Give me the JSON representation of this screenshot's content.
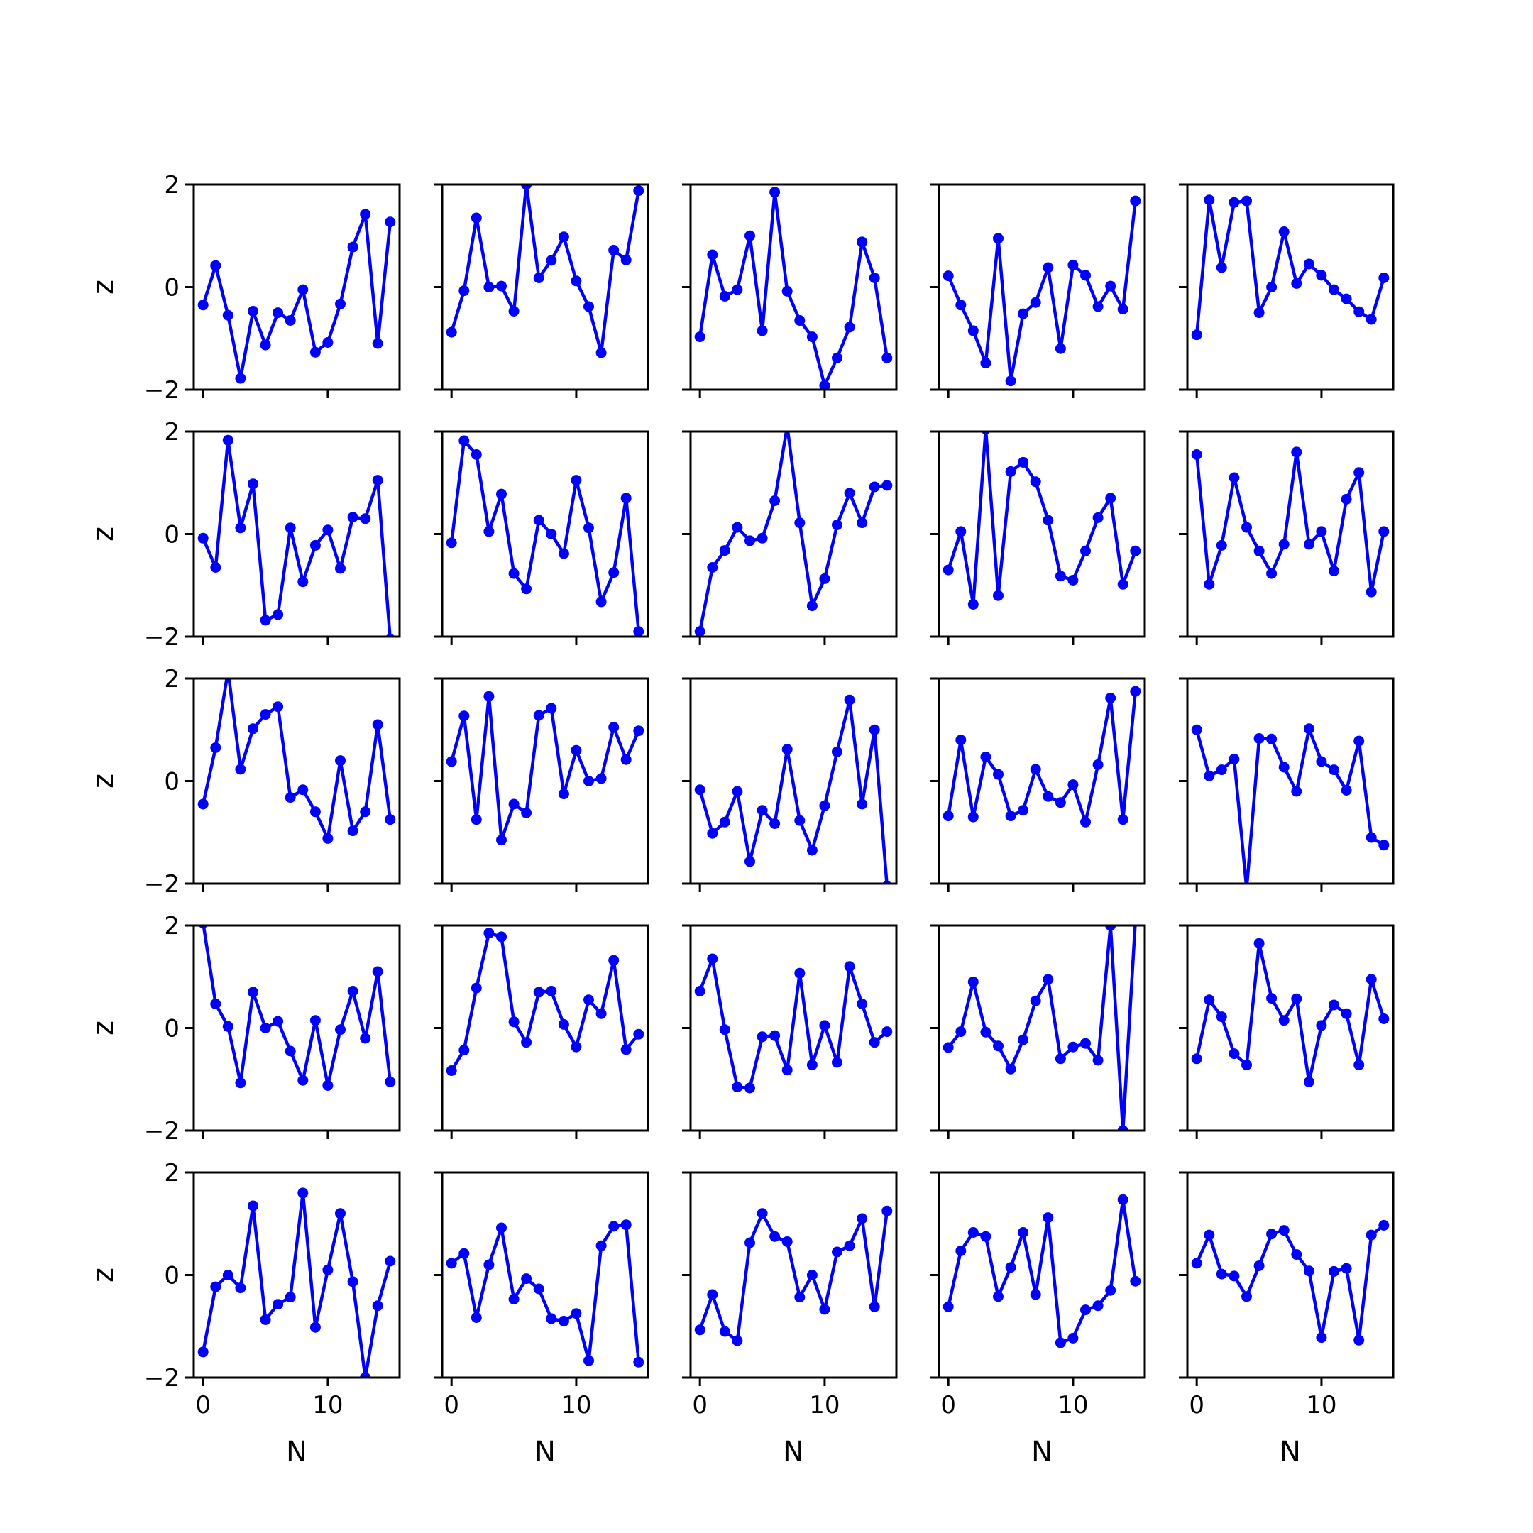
{
  "chart_data": {
    "type": "line",
    "grid_rows": 5,
    "grid_cols": 5,
    "sharex": true,
    "sharey": true,
    "xlabel": "N",
    "ylabel": "z",
    "xlim": [
      -0.75,
      15.75
    ],
    "ylim": [
      -2,
      2
    ],
    "xticks": [
      0,
      10
    ],
    "yticks": [
      -2,
      0,
      2
    ],
    "color": "#0000ff",
    "marker": "circle",
    "grid": false,
    "x": [
      0,
      1,
      2,
      3,
      4,
      5,
      6,
      7,
      8,
      9,
      10,
      11,
      12,
      13,
      14,
      15
    ],
    "panels": [
      {
        "row": 0,
        "col": 0,
        "values": [
          -0.35,
          0.42,
          -0.55,
          -1.78,
          -0.47,
          -1.13,
          -0.5,
          -0.65,
          -0.05,
          -1.27,
          -1.08,
          -0.33,
          0.78,
          1.42,
          -1.1,
          1.27
        ]
      },
      {
        "row": 0,
        "col": 1,
        "values": [
          -0.88,
          -0.07,
          1.35,
          0.0,
          0.02,
          -0.47,
          2.0,
          0.18,
          0.52,
          0.98,
          0.12,
          -0.38,
          -1.28,
          0.72,
          0.53,
          1.88
        ]
      },
      {
        "row": 0,
        "col": 2,
        "values": [
          -0.97,
          0.63,
          -0.18,
          -0.05,
          1.0,
          -0.85,
          1.85,
          -0.08,
          -0.65,
          -0.97,
          -1.92,
          -1.38,
          -0.78,
          0.88,
          0.18,
          -1.38
        ]
      },
      {
        "row": 0,
        "col": 3,
        "values": [
          0.22,
          -0.35,
          -0.85,
          -1.48,
          0.95,
          -1.83,
          -0.52,
          -0.3,
          0.38,
          -1.2,
          0.43,
          0.23,
          -0.38,
          0.02,
          -0.43,
          1.68
        ]
      },
      {
        "row": 0,
        "col": 4,
        "values": [
          -0.93,
          1.7,
          0.38,
          1.65,
          1.68,
          -0.5,
          0.0,
          1.08,
          0.07,
          0.45,
          0.23,
          -0.05,
          -0.23,
          -0.48,
          -0.63,
          0.18
        ]
      },
      {
        "row": 1,
        "col": 0,
        "values": [
          -0.08,
          -0.65,
          1.83,
          0.12,
          0.98,
          -1.68,
          -1.57,
          0.12,
          -0.93,
          -0.22,
          0.08,
          -0.67,
          0.33,
          0.3,
          1.05,
          -2.05
        ]
      },
      {
        "row": 1,
        "col": 1,
        "values": [
          -0.17,
          1.82,
          1.55,
          0.05,
          0.78,
          -0.77,
          -1.07,
          0.27,
          0.0,
          -0.38,
          1.05,
          0.12,
          -1.32,
          -0.75,
          0.7,
          -1.9
        ]
      },
      {
        "row": 1,
        "col": 2,
        "values": [
          -1.9,
          -0.65,
          -0.32,
          0.13,
          -0.13,
          -0.08,
          0.65,
          2.1,
          0.22,
          -1.4,
          -0.87,
          0.18,
          0.8,
          0.22,
          0.92,
          0.95
        ]
      },
      {
        "row": 1,
        "col": 3,
        "values": [
          -0.7,
          0.05,
          -1.37,
          2.05,
          -1.2,
          1.22,
          1.4,
          1.02,
          0.27,
          -0.82,
          -0.9,
          -0.33,
          0.32,
          0.7,
          -0.98,
          -0.33
        ]
      },
      {
        "row": 1,
        "col": 4,
        "values": [
          1.55,
          -0.98,
          -0.22,
          1.1,
          0.13,
          -0.33,
          -0.77,
          -0.2,
          1.6,
          -0.2,
          0.05,
          -0.72,
          0.68,
          1.2,
          -1.13,
          0.05
        ]
      },
      {
        "row": 2,
        "col": 0,
        "values": [
          -0.45,
          0.65,
          2.15,
          0.23,
          1.02,
          1.3,
          1.45,
          -0.32,
          -0.17,
          -0.6,
          -1.12,
          0.4,
          -0.97,
          -0.6,
          1.1,
          -0.75
        ]
      },
      {
        "row": 2,
        "col": 1,
        "values": [
          0.38,
          1.27,
          -0.75,
          1.65,
          -1.15,
          -0.45,
          -0.62,
          1.28,
          1.42,
          -0.25,
          0.6,
          0.0,
          0.05,
          1.05,
          0.42,
          0.98
        ]
      },
      {
        "row": 2,
        "col": 2,
        "values": [
          -0.17,
          -1.02,
          -0.8,
          -0.2,
          -1.57,
          -0.57,
          -0.83,
          0.62,
          -0.77,
          -1.35,
          -0.48,
          0.57,
          1.58,
          -0.45,
          1.0,
          -2.05
        ]
      },
      {
        "row": 2,
        "col": 3,
        "values": [
          -0.68,
          0.8,
          -0.7,
          0.47,
          0.13,
          -0.68,
          -0.57,
          0.23,
          -0.3,
          -0.42,
          -0.07,
          -0.8,
          0.32,
          1.62,
          -0.75,
          1.75
        ]
      },
      {
        "row": 2,
        "col": 4,
        "values": [
          1.0,
          0.1,
          0.22,
          0.43,
          -2.1,
          0.83,
          0.82,
          0.27,
          -0.2,
          1.02,
          0.38,
          0.22,
          -0.18,
          0.78,
          -1.1,
          -1.25
        ]
      },
      {
        "row": 3,
        "col": 0,
        "values": [
          2.05,
          0.47,
          0.03,
          -1.07,
          0.7,
          0.0,
          0.13,
          -0.45,
          -1.02,
          0.15,
          -1.12,
          -0.03,
          0.72,
          -0.2,
          1.1,
          -1.05
        ]
      },
      {
        "row": 3,
        "col": 1,
        "values": [
          -0.83,
          -0.43,
          0.78,
          1.85,
          1.78,
          0.12,
          -0.28,
          0.7,
          0.72,
          0.07,
          -0.37,
          0.55,
          0.28,
          1.32,
          -0.42,
          -0.12
        ]
      },
      {
        "row": 3,
        "col": 2,
        "values": [
          0.72,
          1.35,
          -0.03,
          -1.15,
          -1.17,
          -0.17,
          -0.15,
          -0.82,
          1.07,
          -0.72,
          0.05,
          -0.67,
          1.2,
          0.47,
          -0.28,
          -0.07
        ]
      },
      {
        "row": 3,
        "col": 3,
        "values": [
          -0.38,
          -0.07,
          0.9,
          -0.08,
          -0.35,
          -0.8,
          -0.23,
          0.53,
          0.95,
          -0.6,
          -0.37,
          -0.3,
          -0.63,
          2.0,
          -2.0,
          2.1
        ]
      },
      {
        "row": 3,
        "col": 4,
        "values": [
          -0.6,
          0.55,
          0.22,
          -0.5,
          -0.72,
          1.65,
          0.58,
          0.15,
          0.57,
          -1.05,
          0.05,
          0.45,
          0.28,
          -0.72,
          0.95,
          0.18
        ]
      },
      {
        "row": 4,
        "col": 0,
        "values": [
          -1.5,
          -0.23,
          0.0,
          -0.25,
          1.35,
          -0.87,
          -0.57,
          -0.43,
          1.6,
          -1.02,
          0.1,
          1.2,
          -0.13,
          -2.0,
          -0.6,
          0.27
        ]
      },
      {
        "row": 4,
        "col": 1,
        "values": [
          0.23,
          0.42,
          -0.83,
          0.2,
          0.92,
          -0.47,
          -0.07,
          -0.27,
          -0.85,
          -0.9,
          -0.75,
          -1.67,
          0.57,
          0.95,
          0.98,
          -1.7
        ]
      },
      {
        "row": 4,
        "col": 2,
        "values": [
          -1.07,
          -0.38,
          -1.1,
          -1.28,
          0.63,
          1.2,
          0.75,
          0.65,
          -0.43,
          0.0,
          -0.67,
          0.45,
          0.57,
          1.1,
          -0.62,
          1.25
        ]
      },
      {
        "row": 4,
        "col": 3,
        "values": [
          -0.62,
          0.47,
          0.83,
          0.75,
          -0.42,
          0.15,
          0.83,
          -0.38,
          1.12,
          -1.32,
          -1.23,
          -0.68,
          -0.6,
          -0.3,
          1.47,
          -0.12
        ]
      },
      {
        "row": 4,
        "col": 4,
        "values": [
          0.23,
          0.78,
          0.02,
          -0.02,
          -0.42,
          0.18,
          0.8,
          0.87,
          0.4,
          0.08,
          -1.22,
          0.07,
          0.13,
          -1.27,
          0.78,
          0.97
        ]
      }
    ]
  }
}
